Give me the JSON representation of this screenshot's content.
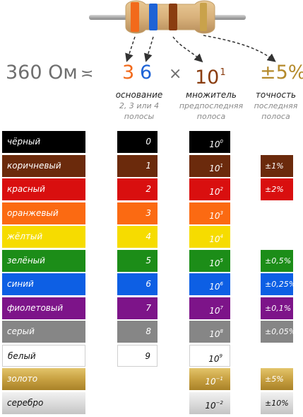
{
  "resistor": {
    "body_color": "#d9b27c",
    "band_colors": [
      "#f26a1b",
      "#1e63d6",
      "#8a3d10",
      "#c9a24b"
    ]
  },
  "formula": {
    "value": "360 Ом",
    "approx_sign": "≍",
    "digit1": "3",
    "digit2": "6",
    "times_sign": "×",
    "multiplier_base": "10",
    "multiplier_exp": "1",
    "tolerance": "±5%"
  },
  "captions": {
    "base_title": "основание",
    "base_sub1": "2, 3 или 4",
    "base_sub2": "полосы",
    "mult_title": "множитель",
    "mult_sub1": "предпоследняя",
    "mult_sub2": "полоса",
    "tol_title": "точность",
    "tol_sub1": "последняя",
    "tol_sub2": "полоса"
  },
  "rows": [
    {
      "name": "чёрный",
      "color": "#000000",
      "digit": "0",
      "mult_base": "10",
      "mult_exp": "0",
      "tolerance": ""
    },
    {
      "name": "коричневый",
      "color": "#6b2a0c",
      "digit": "1",
      "mult_base": "10",
      "mult_exp": "1",
      "tolerance": "±1%"
    },
    {
      "name": "красный",
      "color": "#d90f0f",
      "digit": "2",
      "mult_base": "10",
      "mult_exp": "2",
      "tolerance": "±2%"
    },
    {
      "name": "оранжевый",
      "color": "#fb6a12",
      "digit": "3",
      "mult_base": "10",
      "mult_exp": "3",
      "tolerance": ""
    },
    {
      "name": "жёлтый",
      "color": "#f6dc00",
      "digit": "4",
      "mult_base": "10",
      "mult_exp": "4",
      "tolerance": ""
    },
    {
      "name": "зелёный",
      "color": "#1c8d18",
      "digit": "5",
      "mult_base": "10",
      "mult_exp": "5",
      "tolerance": "±0,5%"
    },
    {
      "name": "синий",
      "color": "#0d5fe4",
      "digit": "6",
      "mult_base": "10",
      "mult_exp": "6",
      "tolerance": "±0,25%"
    },
    {
      "name": "фиолетовый",
      "color": "#7d1489",
      "digit": "7",
      "mult_base": "10",
      "mult_exp": "7",
      "tolerance": "±0,1%"
    },
    {
      "name": "серый",
      "color": "#868686",
      "digit": "8",
      "mult_base": "10",
      "mult_exp": "8",
      "tolerance": "±0,05%"
    },
    {
      "name": "белый",
      "color": "#ffffff",
      "digit": "9",
      "mult_base": "10",
      "mult_exp": "9",
      "tolerance": ""
    },
    {
      "name": "золото",
      "color": "#c8a142",
      "digit": "",
      "mult_base": "10",
      "mult_exp": "−1",
      "tolerance": "±5%"
    },
    {
      "name": "серебро",
      "color": "#dcdcdc",
      "digit": "",
      "mult_base": "10",
      "mult_exp": "−2",
      "tolerance": "±10%"
    }
  ]
}
